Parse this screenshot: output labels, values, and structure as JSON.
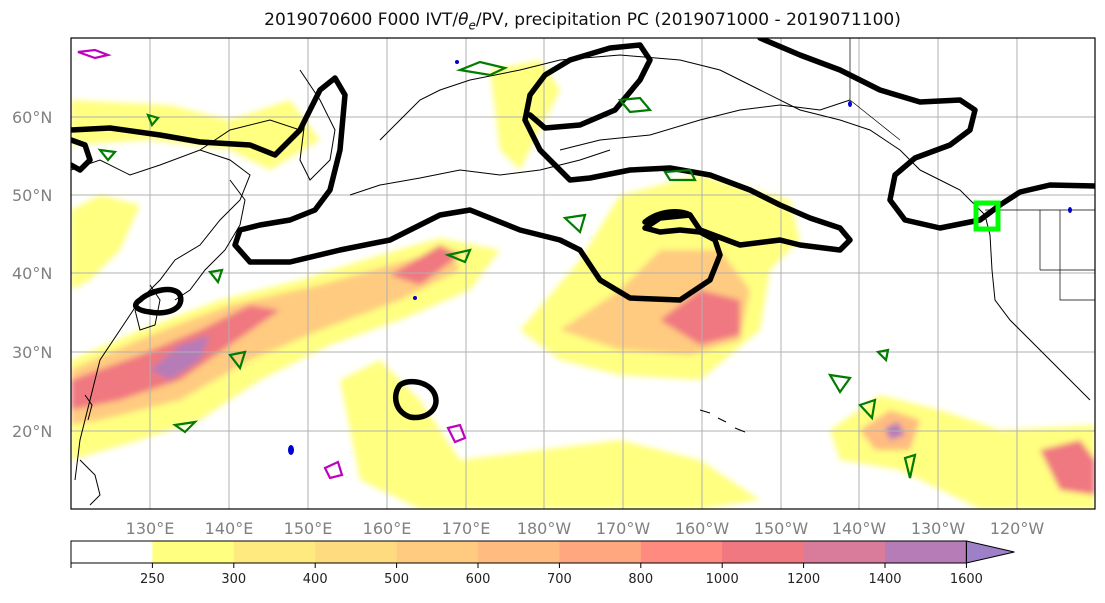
{
  "title": "2019070600 F000 IVT/θe/PV, precipitation PC (2019071000 - 2019071100)",
  "title_parts": {
    "prefix": "2019070600 F000 IVT/",
    "theta": "θ",
    "theta_sub": "e",
    "suffix": "/PV, precipitation PC (2019071000 - 2019071100)"
  },
  "map": {
    "lat_labels": [
      "60°N",
      "50°N",
      "40°N",
      "30°N",
      "20°N"
    ],
    "lon_labels": [
      "130°E",
      "140°E",
      "150°E",
      "160°E",
      "170°E",
      "180°W",
      "170°W",
      "160°W",
      "150°W",
      "140°W",
      "130°W",
      "120°W"
    ]
  },
  "colorbar": {
    "ticks": [
      "250",
      "300",
      "400",
      "500",
      "600",
      "700",
      "800",
      "1000",
      "1200",
      "1400",
      "1600"
    ],
    "colors": [
      "#ffffff",
      "#ffff80",
      "#ffea80",
      "#ffdb80",
      "#ffcb80",
      "#ffbb80",
      "#ffa880",
      "#ff8a80",
      "#f07880",
      "#d97c9c",
      "#b57cb8",
      "#9e80c8"
    ],
    "extend": "max"
  },
  "colors": {
    "ivt_contour": "#000000",
    "pv_contour_green": "#007d00",
    "pv_contour_magenta": "#c000c0",
    "target_box": "#00ff00",
    "coast": "#000000",
    "grid": "#b0b0b0"
  }
}
